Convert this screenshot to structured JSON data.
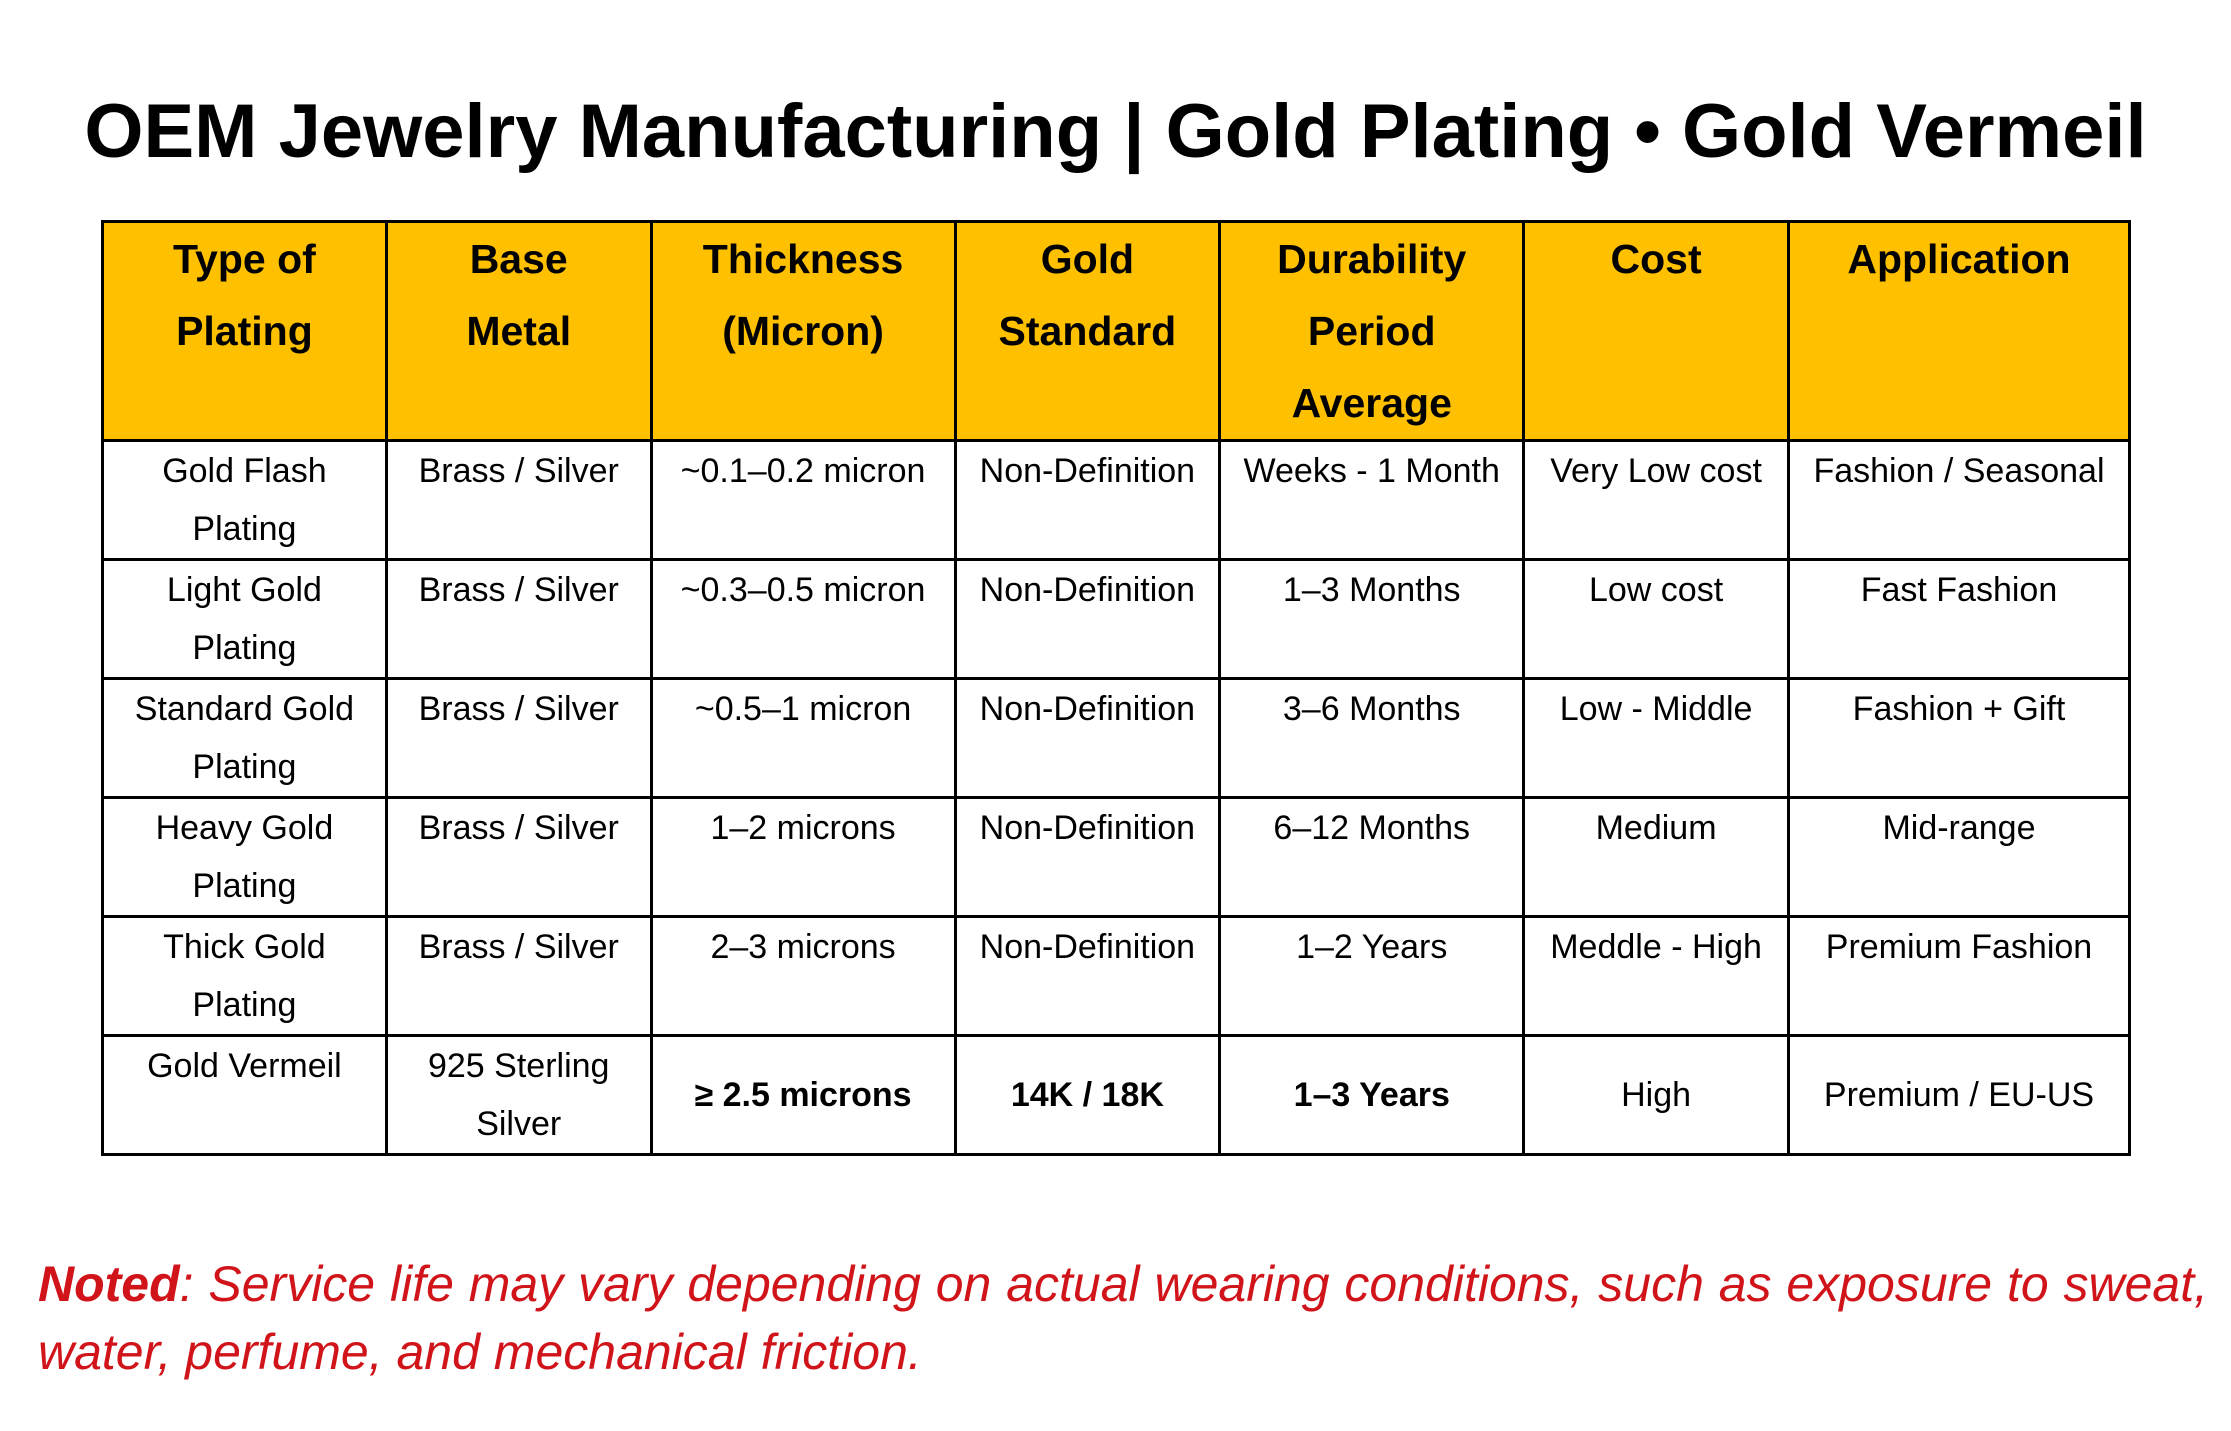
{
  "title": "OEM Jewelry Manufacturing | Gold Plating • Gold Vermeil",
  "colors": {
    "header_fill": "#FFC000",
    "note_text": "#D0141A",
    "border": "#000000"
  },
  "table": {
    "headers": [
      "Type of\nPlating",
      "Base\nMetal",
      "Thickness\n(Micron)",
      "Gold\nStandard",
      "Durability\nPeriod\nAverage",
      "Cost",
      "Application"
    ],
    "rows": [
      [
        "Gold Flash\nPlating",
        "Brass / Silver",
        "~0.1–0.2 micron",
        "Non-Definition",
        "Weeks - 1 Month",
        "Very Low cost",
        "Fashion / Seasonal"
      ],
      [
        "Light Gold\nPlating",
        "Brass / Silver",
        "~0.3–0.5 micron",
        "Non-Definition",
        "1–3 Months",
        "Low cost",
        "Fast Fashion"
      ],
      [
        "Standard Gold\nPlating",
        "Brass / Silver",
        "~0.5–1 micron",
        "Non-Definition",
        "3–6 Months",
        "Low - Middle",
        "Fashion + Gift"
      ],
      [
        "Heavy Gold\nPlating",
        "Brass / Silver",
        "1–2 microns",
        "Non-Definition",
        "6–12 Months",
        "Medium",
        "Mid-range"
      ],
      [
        "Thick Gold\nPlating",
        "Brass / Silver",
        "2–3 microns",
        "Non-Definition",
        "1–2 Years",
        "Meddle - High",
        "Premium Fashion"
      ],
      [
        "Gold Vermeil",
        "925 Sterling\nSilver",
        "≥ 2.5 microns",
        "14K / 18K",
        "1–3 Years",
        "High",
        "Premium / EU-US"
      ]
    ]
  },
  "note": {
    "label": "Noted",
    "text": ": Service life may vary depending on actual wearing conditions, such as exposure to sweat, water, perfume, and mechanical friction."
  }
}
